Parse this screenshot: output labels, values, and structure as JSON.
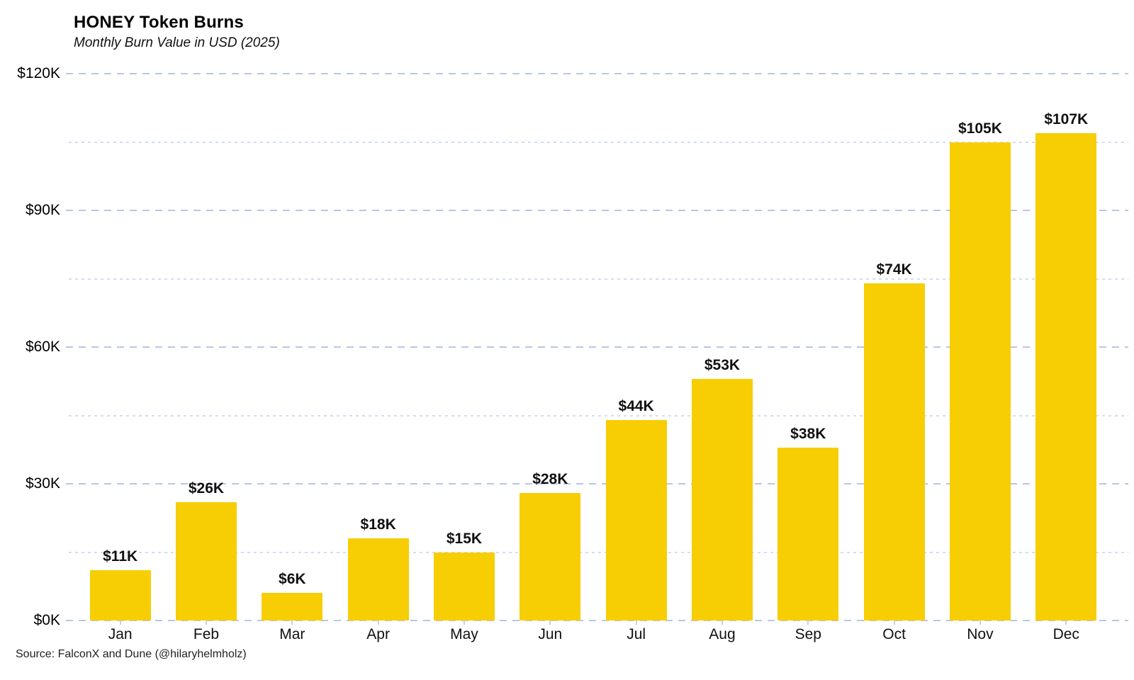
{
  "header": {
    "title": "HONEY Token Burns",
    "subtitle": "Monthly Burn Value in USD (2025)"
  },
  "footer": {
    "source": "Source: FalconX and Dune (@hilaryhelmholz)"
  },
  "chart_data": {
    "type": "bar",
    "title": "HONEY Token Burns",
    "subtitle": "Monthly Burn Value in USD (2025)",
    "categories": [
      "Jan",
      "Feb",
      "Mar",
      "Apr",
      "May",
      "Jun",
      "Jul",
      "Aug",
      "Sep",
      "Oct",
      "Nov",
      "Dec"
    ],
    "values": [
      11,
      26,
      6,
      18,
      15,
      28,
      44,
      53,
      38,
      74,
      105,
      107
    ],
    "bar_labels": [
      "$11K",
      "$26K",
      "$6K",
      "$18K",
      "$15K",
      "$28K",
      "$44K",
      "$53K",
      "$38K",
      "$74K",
      "$105K",
      "$107K"
    ],
    "unit": "USD thousands",
    "xlabel": "",
    "ylabel": "",
    "ylim": [
      0,
      120
    ],
    "y_major_ticks": [
      {
        "value": 0,
        "label": "$0K"
      },
      {
        "value": 30,
        "label": "$30K"
      },
      {
        "value": 60,
        "label": "$60K"
      },
      {
        "value": 90,
        "label": "$90K"
      },
      {
        "value": 120,
        "label": "$120K"
      }
    ],
    "y_minor_ticks": [
      15,
      45,
      75,
      105
    ],
    "grid": "horizontal dashed",
    "legend_position": "none",
    "bar_color": "#F6CE03",
    "major_grid_color": "#B9C7E2",
    "minor_grid_color": "#D2DDF0",
    "axis_tick_color": "#C5D1E8",
    "source": "Source: FalconX and Dune (@hilaryhelmholz)"
  }
}
